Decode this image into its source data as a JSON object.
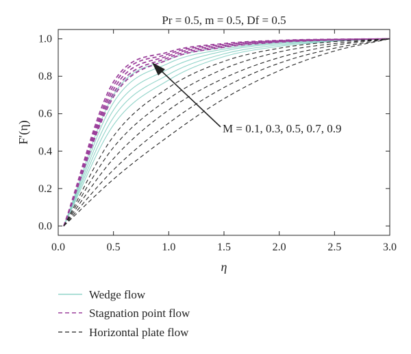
{
  "chart_data": {
    "type": "line",
    "title": "Pr = 0.5, m = 0.5, Df = 0.5",
    "xlabel": "η",
    "ylabel": "F′(η)",
    "xlim": [
      0.0,
      3.0
    ],
    "ylim": [
      -0.05,
      1.05
    ],
    "x_ticks": [
      "0.0",
      "0.5",
      "1.0",
      "1.5",
      "2.0",
      "2.5",
      "3.0"
    ],
    "y_ticks": [
      "0.0",
      "0.2",
      "0.4",
      "0.6",
      "0.8",
      "1.0"
    ],
    "annotation": "M = 0.1, 0.3, 0.5, 0.7, 0.9",
    "grid": false,
    "legend_position": "below",
    "legend": [
      {
        "label": "Wedge flow",
        "color": "#8fd3c8",
        "style": "solid"
      },
      {
        "label": "Stagnation point flow",
        "color": "#9b3f9b",
        "style": "dashed"
      },
      {
        "label": "Horizontal plate flow",
        "color": "#222222",
        "style": "dashed"
      }
    ],
    "x": [
      0.05,
      0.5,
      1.0,
      1.5,
      2.0,
      2.5,
      3.0
    ],
    "series": [
      {
        "group": "Wedge flow",
        "M": 0.1,
        "values": [
          0.0,
          0.7,
          0.89,
          0.955,
          0.985,
          0.996,
          1.0
        ]
      },
      {
        "group": "Wedge flow",
        "M": 0.3,
        "values": [
          0.0,
          0.66,
          0.87,
          0.945,
          0.98,
          0.994,
          1.0
        ]
      },
      {
        "group": "Wedge flow",
        "M": 0.5,
        "values": [
          0.0,
          0.62,
          0.84,
          0.935,
          0.975,
          0.992,
          1.0
        ]
      },
      {
        "group": "Wedge flow",
        "M": 0.7,
        "values": [
          0.0,
          0.58,
          0.81,
          0.92,
          0.968,
          0.99,
          1.0
        ]
      },
      {
        "group": "Wedge flow",
        "M": 0.9,
        "values": [
          0.0,
          0.54,
          0.78,
          0.905,
          0.96,
          0.987,
          1.0
        ]
      },
      {
        "group": "Stagnation point flow",
        "M": 0.1,
        "values": [
          0.0,
          0.77,
          0.93,
          0.975,
          0.992,
          0.998,
          1.0
        ]
      },
      {
        "group": "Stagnation point flow",
        "M": 0.3,
        "values": [
          0.0,
          0.75,
          0.92,
          0.97,
          0.99,
          0.997,
          1.0
        ]
      },
      {
        "group": "Stagnation point flow",
        "M": 0.5,
        "values": [
          0.0,
          0.73,
          0.91,
          0.965,
          0.988,
          0.996,
          1.0
        ]
      },
      {
        "group": "Stagnation point flow",
        "M": 0.7,
        "values": [
          0.0,
          0.71,
          0.9,
          0.96,
          0.985,
          0.995,
          1.0
        ]
      },
      {
        "group": "Stagnation point flow",
        "M": 0.9,
        "values": [
          0.0,
          0.69,
          0.89,
          0.955,
          0.982,
          0.994,
          1.0
        ]
      },
      {
        "group": "Horizontal plate flow",
        "M": 0.1,
        "values": [
          0.0,
          0.48,
          0.74,
          0.88,
          0.95,
          0.985,
          1.0
        ]
      },
      {
        "group": "Horizontal plate flow",
        "M": 0.3,
        "values": [
          0.0,
          0.42,
          0.68,
          0.84,
          0.93,
          0.975,
          1.0
        ]
      },
      {
        "group": "Horizontal plate flow",
        "M": 0.5,
        "values": [
          0.0,
          0.36,
          0.62,
          0.79,
          0.9,
          0.965,
          1.0
        ]
      },
      {
        "group": "Horizontal plate flow",
        "M": 0.7,
        "values": [
          0.0,
          0.3,
          0.55,
          0.74,
          0.87,
          0.95,
          1.0
        ]
      },
      {
        "group": "Horizontal plate flow",
        "M": 0.9,
        "values": [
          0.0,
          0.25,
          0.48,
          0.68,
          0.83,
          0.935,
          1.0
        ]
      }
    ]
  }
}
